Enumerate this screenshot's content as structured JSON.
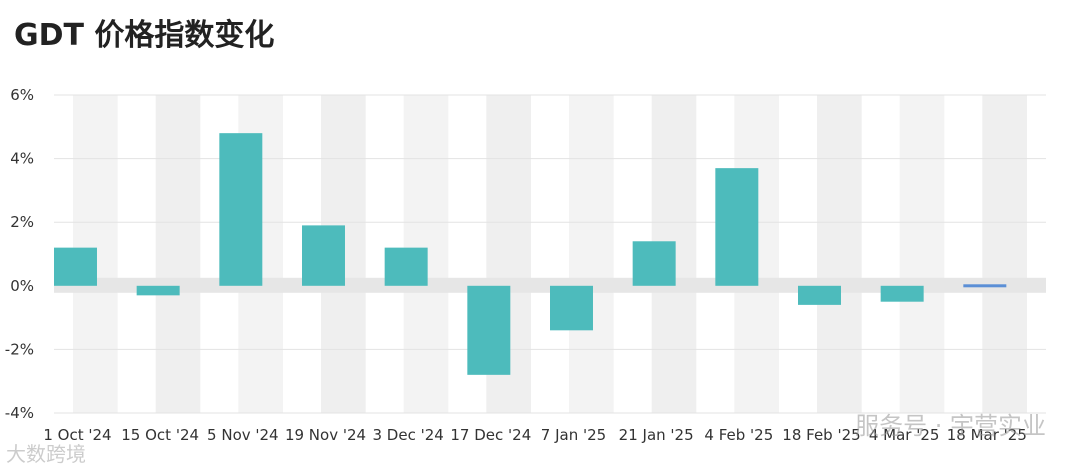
{
  "chart_data": {
    "type": "bar",
    "title": "GDT 价格指数变化",
    "categories": [
      "1 Oct '24",
      "15 Oct '24",
      "5 Nov '24",
      "19 Nov '24",
      "3 Dec '24",
      "17 Dec '24",
      "7 Jan '25",
      "21 Jan '25",
      "4 Feb '25",
      "18 Feb '25",
      "4 Mar '25",
      "18 Mar '25"
    ],
    "values": [
      1.2,
      -0.3,
      4.8,
      1.9,
      1.2,
      -2.8,
      -1.4,
      1.4,
      3.7,
      -0.6,
      -0.5,
      0.0
    ],
    "ylim": [
      -4,
      6
    ],
    "yticks": [
      "6%",
      "4%",
      "2%",
      "0%",
      "-2%",
      "-4%"
    ],
    "ytick_values": [
      6,
      4,
      2,
      0,
      -2,
      -4
    ],
    "xlabel": "",
    "ylabel": "",
    "grid": true,
    "colors": {
      "bar": "#4dbbbc",
      "last_bar": "#5b8fd6",
      "column_band": "#efefef",
      "zero_band": "#e6e6e6"
    }
  },
  "watermarks": {
    "right": "服务号 · 宇营实业",
    "left": "大数跨境"
  }
}
